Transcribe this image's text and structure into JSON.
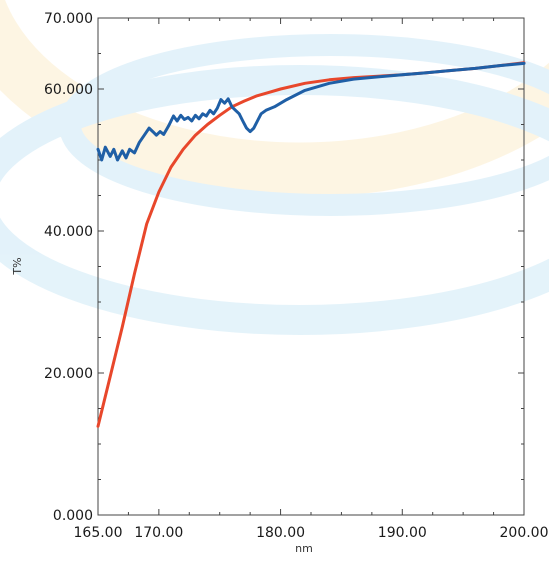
{
  "chart_data": {
    "type": "line",
    "xlabel": "nm",
    "ylabel": "T%",
    "xlim": [
      165,
      200
    ],
    "ylim": [
      0,
      70
    ],
    "x_ticks": [
      "165.00",
      "170.00",
      "180.00",
      "190.00",
      "200.00"
    ],
    "x_tick_values": [
      165,
      170,
      180,
      190,
      200
    ],
    "y_ticks": [
      "0.000",
      "20.000",
      "40.000",
      "60.000",
      "70.000"
    ],
    "y_tick_values": [
      0,
      20,
      40,
      60,
      70
    ],
    "grid": false,
    "series": [
      {
        "color": "#e8472b",
        "points": [
          [
            165.0,
            12.5
          ],
          [
            165.5,
            16.0
          ],
          [
            166.0,
            19.5
          ],
          [
            167.0,
            26.5
          ],
          [
            168.0,
            34.0
          ],
          [
            169.0,
            41.0
          ],
          [
            170.0,
            45.5
          ],
          [
            171.0,
            49.0
          ],
          [
            172.0,
            51.5
          ],
          [
            173.0,
            53.5
          ],
          [
            174.0,
            55.0
          ],
          [
            175.0,
            56.3
          ],
          [
            176.0,
            57.5
          ],
          [
            177.0,
            58.3
          ],
          [
            178.0,
            59.0
          ],
          [
            179.0,
            59.5
          ],
          [
            180.0,
            60.0
          ],
          [
            182.0,
            60.8
          ],
          [
            184.0,
            61.3
          ],
          [
            186.0,
            61.6
          ],
          [
            188.0,
            61.8
          ],
          [
            190.0,
            62.0
          ],
          [
            192.0,
            62.3
          ],
          [
            194.0,
            62.6
          ],
          [
            196.0,
            62.9
          ],
          [
            198.0,
            63.3
          ],
          [
            200.0,
            63.7
          ]
        ]
      },
      {
        "color": "#1f5fa6",
        "points": [
          [
            165.0,
            51.5
          ],
          [
            165.3,
            50.0
          ],
          [
            165.6,
            51.8
          ],
          [
            166.0,
            50.5
          ],
          [
            166.3,
            51.5
          ],
          [
            166.6,
            50.0
          ],
          [
            167.0,
            51.3
          ],
          [
            167.3,
            50.3
          ],
          [
            167.6,
            51.5
          ],
          [
            168.0,
            51.0
          ],
          [
            168.4,
            52.5
          ],
          [
            168.8,
            53.5
          ],
          [
            169.2,
            54.5
          ],
          [
            169.5,
            54.0
          ],
          [
            169.8,
            53.5
          ],
          [
            170.1,
            54.0
          ],
          [
            170.4,
            53.6
          ],
          [
            170.8,
            54.8
          ],
          [
            171.2,
            56.2
          ],
          [
            171.5,
            55.5
          ],
          [
            171.8,
            56.3
          ],
          [
            172.1,
            55.7
          ],
          [
            172.4,
            56.0
          ],
          [
            172.7,
            55.5
          ],
          [
            173.0,
            56.3
          ],
          [
            173.3,
            55.8
          ],
          [
            173.6,
            56.5
          ],
          [
            173.9,
            56.2
          ],
          [
            174.2,
            57.0
          ],
          [
            174.5,
            56.5
          ],
          [
            174.8,
            57.3
          ],
          [
            175.1,
            58.5
          ],
          [
            175.4,
            58.0
          ],
          [
            175.7,
            58.6
          ],
          [
            176.0,
            57.5
          ],
          [
            176.3,
            57.0
          ],
          [
            176.6,
            56.5
          ],
          [
            176.9,
            55.5
          ],
          [
            177.2,
            54.5
          ],
          [
            177.5,
            54.0
          ],
          [
            177.8,
            54.5
          ],
          [
            178.1,
            55.5
          ],
          [
            178.4,
            56.5
          ],
          [
            178.8,
            57.0
          ],
          [
            179.5,
            57.5
          ],
          [
            180.5,
            58.5
          ],
          [
            182.0,
            59.8
          ],
          [
            184.0,
            60.8
          ],
          [
            186.0,
            61.4
          ],
          [
            188.0,
            61.7
          ],
          [
            190.0,
            62.0
          ],
          [
            192.0,
            62.3
          ],
          [
            194.0,
            62.6
          ],
          [
            196.0,
            62.9
          ],
          [
            198.0,
            63.3
          ],
          [
            200.0,
            63.6
          ]
        ]
      }
    ]
  }
}
